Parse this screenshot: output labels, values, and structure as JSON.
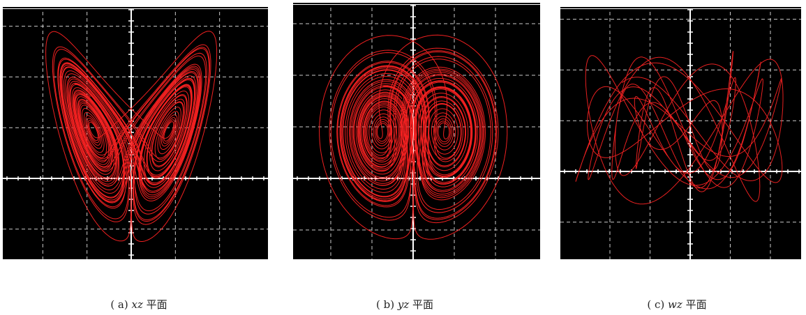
{
  "panels": [
    {
      "label": "( a)",
      "plane": "xz",
      "suffix": "平面"
    },
    {
      "label": "( b)",
      "plane": "yz",
      "suffix": "平面"
    },
    {
      "label": "( c)",
      "plane": "wz",
      "suffix": "平面"
    }
  ]
}
